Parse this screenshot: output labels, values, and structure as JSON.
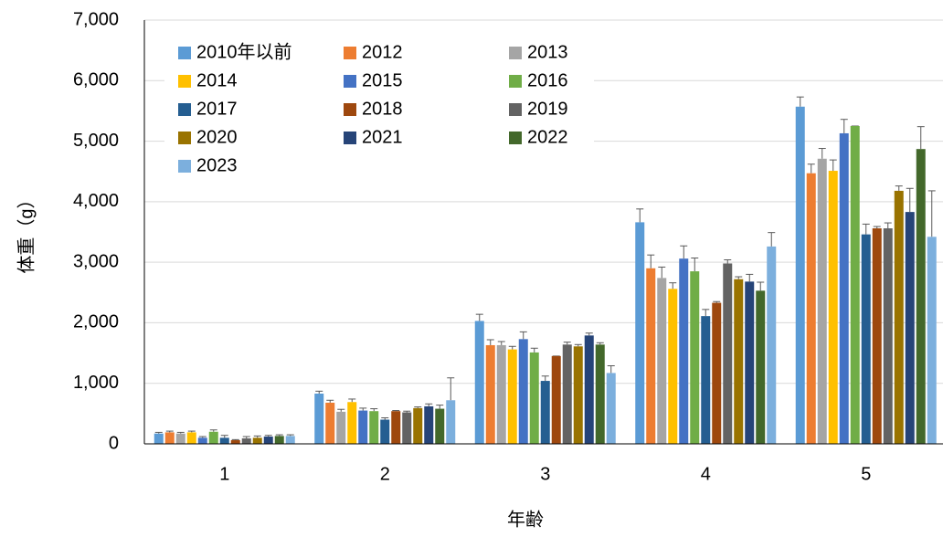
{
  "chart_data": {
    "type": "bar",
    "x_label": "年齢",
    "y_label": "体重（g）",
    "categories": [
      "1",
      "2",
      "3",
      "4",
      "5"
    ],
    "ylim": [
      0,
      7000
    ],
    "yticks": [
      0,
      {
        "value": 1000,
        "label": "1,000"
      },
      {
        "value": 2000,
        "label": "2,000"
      },
      {
        "value": 3000,
        "label": "3,000"
      },
      {
        "value": 4000,
        "label": "4,000"
      },
      {
        "value": 5000,
        "label": "5,000"
      },
      {
        "value": 6000,
        "label": "6,000"
      },
      {
        "value": 7000,
        "label": "7,000"
      }
    ],
    "grid": true,
    "legend": "upper left",
    "series": [
      {
        "name": "2010年以前",
        "color": "#5b9bd5",
        "values": [
          170,
          830,
          2030,
          3660,
          5570
        ],
        "errors": [
          20,
          40,
          110,
          220,
          160
        ]
      },
      {
        "name": "2012",
        "color": "#ed7d31",
        "values": [
          190,
          680,
          1630,
          2900,
          4470
        ],
        "errors": [
          20,
          40,
          90,
          220,
          150
        ]
      },
      {
        "name": "2013",
        "color": "#a5a5a5",
        "values": [
          170,
          530,
          1630,
          2740,
          4710
        ],
        "errors": [
          20,
          40,
          60,
          180,
          170
        ]
      },
      {
        "name": "2014",
        "color": "#ffc000",
        "values": [
          190,
          690,
          1560,
          2560,
          4510
        ],
        "errors": [
          20,
          50,
          50,
          100,
          180
        ]
      },
      {
        "name": "2015",
        "color": "#4472c4",
        "values": [
          100,
          550,
          1730,
          3060,
          5130
        ],
        "errors": [
          20,
          40,
          120,
          210,
          230
        ]
      },
      {
        "name": "2016",
        "color": "#70ad47",
        "values": [
          200,
          540,
          1510,
          2850,
          5250
        ],
        "errors": [
          30,
          40,
          70,
          220,
          0
        ]
      },
      {
        "name": "2017",
        "color": "#255e91",
        "values": [
          100,
          400,
          1040,
          2110,
          3460
        ],
        "errors": [
          40,
          30,
          80,
          110,
          170
        ]
      },
      {
        "name": "2018",
        "color": "#9e480e",
        "values": [
          60,
          540,
          1450,
          2330,
          3560
        ],
        "errors": [
          10,
          10,
          0,
          20,
          30
        ]
      },
      {
        "name": "2019",
        "color": "#636363",
        "values": [
          90,
          520,
          1640,
          2980,
          3560
        ],
        "errors": [
          30,
          20,
          40,
          60,
          90
        ]
      },
      {
        "name": "2020",
        "color": "#997300",
        "values": [
          100,
          590,
          1610,
          2720,
          4180
        ],
        "errors": [
          30,
          20,
          30,
          40,
          80
        ]
      },
      {
        "name": "2021",
        "color": "#264478",
        "values": [
          120,
          620,
          1790,
          2680,
          3830
        ],
        "errors": [
          20,
          40,
          40,
          120,
          390
        ]
      },
      {
        "name": "2022",
        "color": "#43682b",
        "values": [
          130,
          580,
          1640,
          2530,
          4870
        ],
        "errors": [
          20,
          60,
          30,
          140,
          370
        ]
      },
      {
        "name": "2023",
        "color": "#7cafdd",
        "values": [
          130,
          720,
          1170,
          3260,
          3420
        ],
        "errors": [
          20,
          370,
          120,
          230,
          760
        ]
      }
    ]
  }
}
